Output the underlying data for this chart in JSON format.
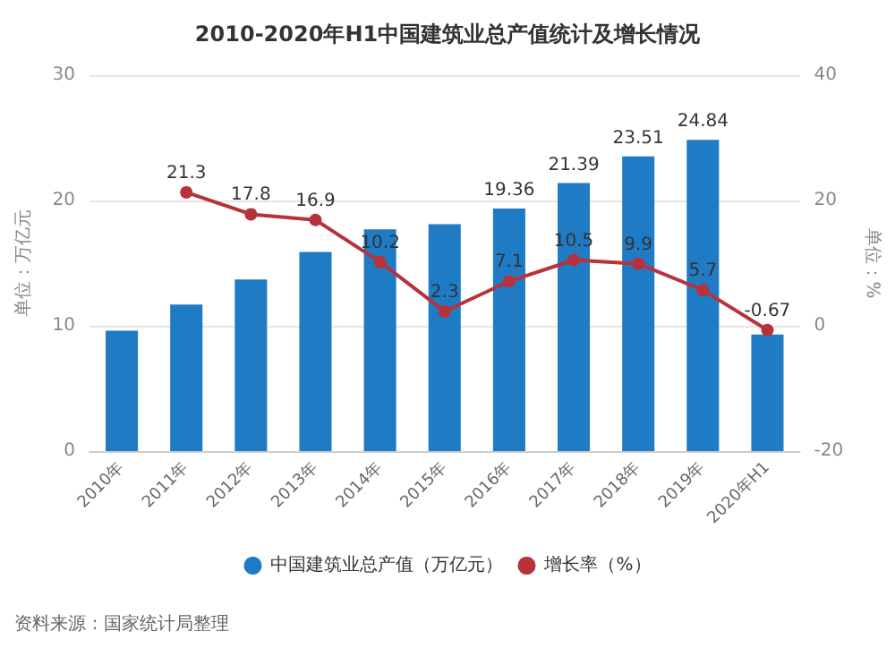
{
  "chart_data": {
    "type": "bar",
    "title": "2010-2020年H1中国建筑业总产值统计及增长情况",
    "categories": [
      "2010年",
      "2011年",
      "2012年",
      "2013年",
      "2014年",
      "2015年",
      "2016年",
      "2017年",
      "2018年",
      "2019年",
      "2020年H1"
    ],
    "series": [
      {
        "name": "中国建筑业总产值（万亿元）",
        "color": "#1f7bc4",
        "values": [
          9.6,
          11.7,
          13.7,
          15.9,
          17.7,
          18.1,
          19.36,
          21.39,
          23.51,
          24.84,
          9.3
        ],
        "value_labels": [
          null,
          null,
          null,
          null,
          null,
          null,
          "19.36",
          "21.39",
          "23.51",
          "24.84",
          null
        ]
      },
      {
        "name": "增长率（%）",
        "type": "line",
        "axis": "y2",
        "color": "#b8323c",
        "marker": "circle",
        "values": [
          null,
          21.3,
          17.8,
          16.9,
          10.2,
          2.3,
          7.1,
          10.5,
          9.9,
          5.7,
          -0.67
        ],
        "value_labels": [
          null,
          "21.3",
          "17.8",
          "16.9",
          "10.2",
          "2.3",
          "7.1",
          "10.5",
          "9.9",
          "5.7",
          "-0.67"
        ]
      }
    ],
    "ylabel": "单位：万亿元",
    "y2label": "单位：%",
    "ylim": [
      0,
      30
    ],
    "yticks": [
      0,
      10,
      20,
      30
    ],
    "y2lim": [
      -20,
      40
    ],
    "y2ticks": [
      -20,
      0,
      20,
      40
    ],
    "grid": "y",
    "legend": "bottom",
    "annotations": [
      "资料来源：国家统计局整理"
    ]
  }
}
